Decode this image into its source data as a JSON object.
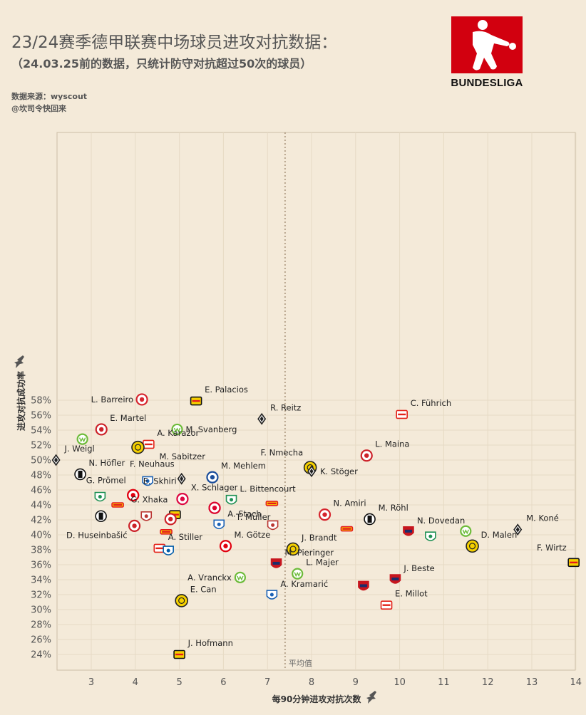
{
  "header": {
    "title": "23/24赛季德甲联赛中场球员进攻对抗数据：",
    "subtitle": "（24.03.25前的数据，只统计防守对抗超过50次的球员）",
    "source": "数据来源：wyscout",
    "author": "@坎司令快回来"
  },
  "logo": {
    "text": "BUNDESLIGA",
    "color": "#d2000f"
  },
  "chart_data": {
    "type": "scatter",
    "xlabel": "每90分钟进攻对抗次数",
    "ylabel": "进攻对抗成功率",
    "xlim": [
      2.2,
      14.2
    ],
    "ylim": [
      23.1,
      58.8
    ],
    "x_ticks": [
      "3",
      "4",
      "5",
      "6",
      "7",
      "8",
      "9",
      "10",
      "11",
      "12",
      "13",
      "14"
    ],
    "y_ticks": [
      "24%",
      "26%",
      "28%",
      "30%",
      "32%",
      "34%",
      "36%",
      "38%",
      "40%",
      "42%",
      "44%",
      "46%",
      "48%",
      "50%",
      "52%",
      "54%",
      "56%",
      "58%"
    ],
    "average_x": 7.4,
    "average_label": "平均值",
    "grid": true,
    "points": [
      {
        "name": "L. Barreiro",
        "x": 4.15,
        "y": 58.1,
        "club": "mainz",
        "label_pos": "left"
      },
      {
        "name": "E. Palacios",
        "x": 5.38,
        "y": 57.9,
        "club": "leverkusen",
        "label_pos": "above-right"
      },
      {
        "name": "R. Reitz",
        "x": 6.87,
        "y": 55.5,
        "club": "gladbach",
        "label_pos": "above-right"
      },
      {
        "name": "C. Führich",
        "x": 10.05,
        "y": 56.1,
        "club": "stuttgart",
        "label_pos": "above-right"
      },
      {
        "name": "E. Martel",
        "x": 3.23,
        "y": 54.1,
        "club": "koln",
        "label_pos": "above-right"
      },
      {
        "name": "M. Svanberg",
        "x": 4.95,
        "y": 54.1,
        "club": "wolfsburg",
        "label_pos": "right"
      },
      {
        "name": "",
        "x": 2.8,
        "y": 52.8,
        "club": "wolfsburg",
        "label_pos": "none"
      },
      {
        "name": "A. Karazor",
        "x": 4.3,
        "y": 52.1,
        "club": "stuttgart",
        "label_pos": "above-right"
      },
      {
        "name": "M. Sabitzer",
        "x": 4.06,
        "y": 51.7,
        "club": "dortmund",
        "label_pos": "below-right"
      },
      {
        "name": "L. Maina",
        "x": 9.25,
        "y": 50.6,
        "club": "koln",
        "label_pos": "above-right"
      },
      {
        "name": "J. Weigl",
        "x": 2.2,
        "y": 50.0,
        "club": "gladbach",
        "label_pos": "above-right"
      },
      {
        "name": "F. Nmecha",
        "x": 7.97,
        "y": 49.0,
        "club": "dortmund",
        "label_pos": "above-left"
      },
      {
        "name": "K. Stöger",
        "x": 8.0,
        "y": 48.5,
        "club": "gladbach",
        "label_pos": "right"
      },
      {
        "name": "N. Höfler",
        "x": 2.75,
        "y": 48.1,
        "club": "freiburg",
        "label_pos": "above-right"
      },
      {
        "name": "F. Neuhaus",
        "x": 5.05,
        "y": 47.5,
        "club": "gladbach",
        "label_pos": "above-left"
      },
      {
        "name": "M. Mehlem",
        "x": 5.75,
        "y": 47.7,
        "club": "darmstadt",
        "label_pos": "above-right"
      },
      {
        "name": "",
        "x": 4.28,
        "y": 47.1,
        "club": "hoffenheim",
        "label_pos": "none"
      },
      {
        "name": "G. Prömel",
        "x": 3.95,
        "y": 45.3,
        "club": "frankfurt",
        "label_pos": "above-left"
      },
      {
        "name": "E. Skhiri",
        "x": 3.95,
        "y": 45.3,
        "club": "frankfurt",
        "label_pos": "above-right-2"
      },
      {
        "name": "",
        "x": 3.2,
        "y": 45.0,
        "club": "bremen",
        "label_pos": "none"
      },
      {
        "name": "X. Schlager",
        "x": 5.07,
        "y": 44.8,
        "club": "leipzig",
        "label_pos": "above-right"
      },
      {
        "name": "L. Bittencourt",
        "x": 6.18,
        "y": 44.6,
        "club": "bremen",
        "label_pos": "above-right"
      },
      {
        "name": "",
        "x": 3.6,
        "y": 44.0,
        "club": "union",
        "label_pos": "none"
      },
      {
        "name": "",
        "x": 7.1,
        "y": 44.2,
        "club": "union",
        "label_pos": "none"
      },
      {
        "name": "",
        "x": 5.8,
        "y": 43.6,
        "club": "bayern",
        "label_pos": "none"
      },
      {
        "name": "G. Xhaka",
        "x": 4.9,
        "y": 42.7,
        "club": "leverkusen",
        "label_pos": "above-left"
      },
      {
        "name": "T. Müller",
        "x": 5.8,
        "y": 43.6,
        "club": "bayern",
        "label_pos": "below-right"
      },
      {
        "name": "A. Stach",
        "x": 5.9,
        "y": 41.3,
        "club": "hoffenheim",
        "label_pos": "above-right"
      },
      {
        "name": "N. Amiri",
        "x": 8.3,
        "y": 42.7,
        "club": "mainz",
        "label_pos": "above-right"
      },
      {
        "name": "M. Röhl",
        "x": 9.32,
        "y": 42.1,
        "club": "freiburg",
        "label_pos": "above-right"
      },
      {
        "name": "",
        "x": 3.22,
        "y": 42.5,
        "club": "freiburg",
        "label_pos": "none"
      },
      {
        "name": "",
        "x": 4.25,
        "y": 42.4,
        "club": "augsburg",
        "label_pos": "none"
      },
      {
        "name": "",
        "x": 4.8,
        "y": 42.1,
        "club": "koln",
        "label_pos": "none"
      },
      {
        "name": "",
        "x": 7.12,
        "y": 41.2,
        "club": "augsburg",
        "label_pos": "none"
      },
      {
        "name": "D. Huseinbašić",
        "x": 3.98,
        "y": 41.2,
        "club": "koln",
        "label_pos": "below-left"
      },
      {
        "name": "",
        "x": 4.7,
        "y": 40.4,
        "club": "union",
        "label_pos": "none"
      },
      {
        "name": "",
        "x": 8.8,
        "y": 40.8,
        "club": "union",
        "label_pos": "none"
      },
      {
        "name": "N. Dovedan",
        "x": 10.2,
        "y": 40.4,
        "club": "heidenheim",
        "label_pos": "above-right"
      },
      {
        "name": "",
        "x": 11.5,
        "y": 40.5,
        "club": "wolfsburg",
        "label_pos": "none"
      },
      {
        "name": "M. Koné",
        "x": 12.68,
        "y": 40.7,
        "club": "gladbach",
        "label_pos": "above-right"
      },
      {
        "name": "",
        "x": 10.7,
        "y": 39.7,
        "club": "bremen",
        "label_pos": "none"
      },
      {
        "name": "D. Malen",
        "x": 11.65,
        "y": 38.5,
        "club": "dortmund",
        "label_pos": "above-right"
      },
      {
        "name": "A. Stiller",
        "x": 4.55,
        "y": 38.2,
        "club": "stuttgart",
        "label_pos": "above-right"
      },
      {
        "name": "",
        "x": 4.75,
        "y": 37.8,
        "club": "bochum",
        "label_pos": "none"
      },
      {
        "name": "M. Götze",
        "x": 6.05,
        "y": 38.5,
        "club": "frankfurt",
        "label_pos": "above-right"
      },
      {
        "name": "J. Brandt",
        "x": 7.58,
        "y": 38.1,
        "club": "dortmund",
        "label_pos": "above-right"
      },
      {
        "name": "F. Wirtz",
        "x": 13.95,
        "y": 36.3,
        "club": "leverkusen",
        "label_pos": "above-left"
      },
      {
        "name": "M. Pieringer",
        "x": 7.2,
        "y": 36.1,
        "club": "heidenheim",
        "label_pos": "above-right"
      },
      {
        "name": "L. Majer",
        "x": 7.68,
        "y": 34.8,
        "club": "wolfsburg",
        "label_pos": "above-right"
      },
      {
        "name": "J. Beste",
        "x": 9.9,
        "y": 34.0,
        "club": "heidenheim",
        "label_pos": "above-right"
      },
      {
        "name": "A. Vranckx",
        "x": 6.38,
        "y": 34.3,
        "club": "wolfsburg",
        "label_pos": "left"
      },
      {
        "name": "A. Kramarić",
        "x": 7.1,
        "y": 31.9,
        "club": "hoffenheim",
        "label_pos": "above-right"
      },
      {
        "name": "",
        "x": 9.18,
        "y": 33.1,
        "club": "heidenheim",
        "label_pos": "none"
      },
      {
        "name": "E. Can",
        "x": 5.05,
        "y": 31.2,
        "club": "dortmund",
        "label_pos": "above-right"
      },
      {
        "name": "E. Millot",
        "x": 9.7,
        "y": 30.6,
        "club": "stuttgart",
        "label_pos": "above-right"
      },
      {
        "name": "J. Hofmann",
        "x": 5.0,
        "y": 24.0,
        "club": "leverkusen",
        "label_pos": "above-right"
      }
    ]
  },
  "club_colors": {
    "mainz": "#d6252e",
    "leverkusen": "#111111",
    "gladbach": "#222222",
    "stuttgart": "#e32219",
    "koln": "#cc2229",
    "wolfsburg": "#6dbb3a",
    "dortmund": "#f5d000",
    "freiburg": "#111111",
    "hoffenheim": "#1961b5",
    "darmstadt": "#1b4e9b",
    "frankfurt": "#e1000f",
    "bremen": "#1d9053",
    "leipzig": "#dd0741",
    "union": "#e5191e",
    "bayern": "#dc052d",
    "augsburg": "#ba3733",
    "heidenheim": "#c7161e",
    "bochum": "#005ca9"
  }
}
